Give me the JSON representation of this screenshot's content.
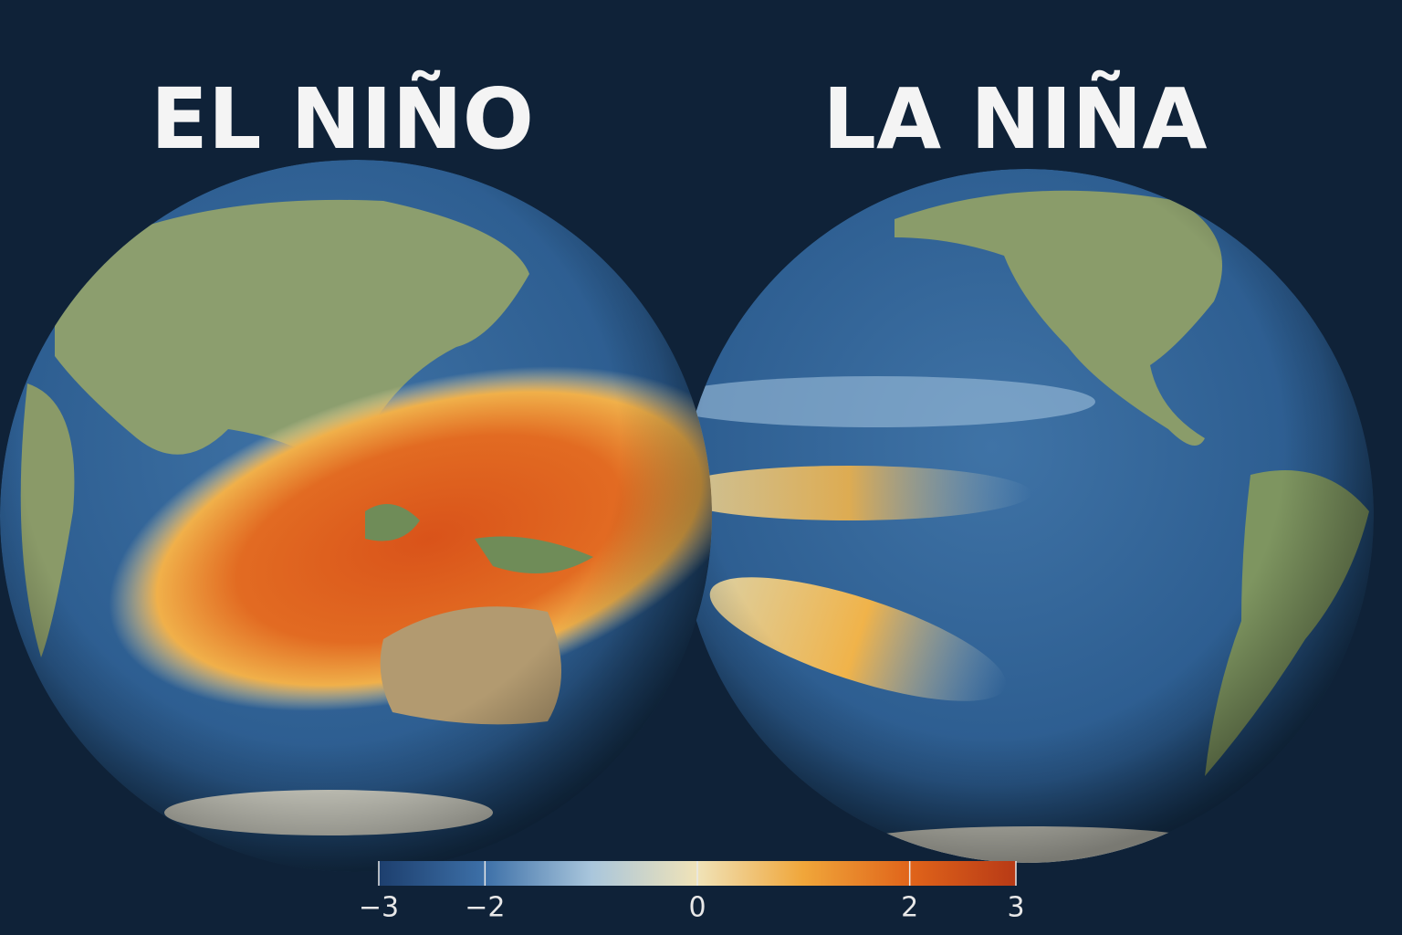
{
  "titles": {
    "left": "EL NIÑO",
    "right": "LA NIÑA"
  },
  "colorbar": {
    "lim": [
      -3,
      3
    ],
    "ticks": [
      {
        "value": -3,
        "label": "−3"
      },
      {
        "value": -2,
        "label": "−2"
      },
      0,
      2,
      3
    ],
    "colors": [
      "#1d3f6e",
      "#3d70a8",
      "#a9c6dc",
      "#f0e3b8",
      "#f0a63a",
      "#e0641a",
      "#b83a16"
    ]
  }
}
